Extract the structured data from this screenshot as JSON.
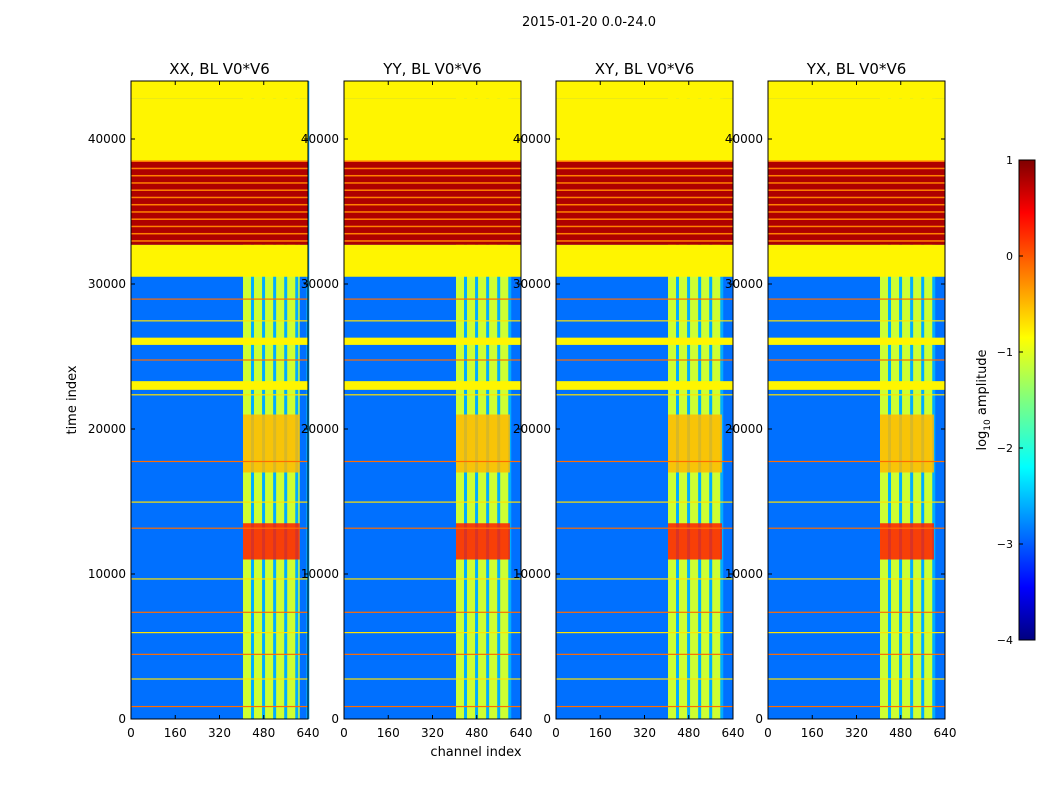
{
  "chart_data": {
    "type": "heatmap",
    "title": "2015-01-20 0.0-24.0",
    "xlabel": "channel index",
    "ylabel": "time index",
    "xlim": [
      0,
      640
    ],
    "ylim": [
      0,
      44000
    ],
    "x_ticks": [
      0,
      160,
      320,
      480,
      640
    ],
    "x_tick_labels": [
      "0",
      "160",
      "320",
      "480",
      "640"
    ],
    "y_ticks": [
      0,
      10000,
      20000,
      30000,
      40000
    ],
    "y_tick_labels": [
      "0",
      "10000",
      "20000",
      "30000",
      "40000"
    ],
    "colormap": "jet",
    "colorbar": {
      "label": "log10 amplitude",
      "label_prefix": "log",
      "label_sub": "10",
      "label_suffix": " amplitude",
      "range": [
        -4,
        1
      ],
      "ticks": [
        1,
        0,
        -1,
        -2,
        -3,
        -4
      ],
      "tick_labels": [
        "1",
        "0",
        "−1",
        "−2",
        "−3",
        "−4"
      ]
    },
    "panels": [
      {
        "name": "XX",
        "title": "XX, BL V0*V6",
        "bright_columns": [
          [
            405,
            610
          ]
        ]
      },
      {
        "name": "YY",
        "title": "YY, BL V0*V6",
        "bright_columns": [
          [
            405,
            600
          ]
        ]
      },
      {
        "name": "XY",
        "title": "XY, BL V0*V6",
        "bright_columns": [
          [
            405,
            600
          ]
        ]
      },
      {
        "name": "YX",
        "title": "YX, BL V0*V6",
        "bright_columns": [
          [
            405,
            600
          ]
        ]
      }
    ],
    "flagged_time_ranges": [
      {
        "from": 38500,
        "to": 42800,
        "value": -0.8
      },
      {
        "from": 32700,
        "to": 38500,
        "value": 0.8
      },
      {
        "from": 30500,
        "to": 32700,
        "value": -0.8
      },
      {
        "from": 25800,
        "to": 26300,
        "value": -0.8
      },
      {
        "from": 22700,
        "to": 23300,
        "value": -0.8
      },
      {
        "from": 42800,
        "to": 44000,
        "value": -0.8
      }
    ],
    "bright_time_ranges": [
      {
        "from": 11000,
        "to": 13500,
        "value": 0.3
      },
      {
        "from": 17000,
        "to": 21000,
        "value": -0.5
      }
    ]
  }
}
